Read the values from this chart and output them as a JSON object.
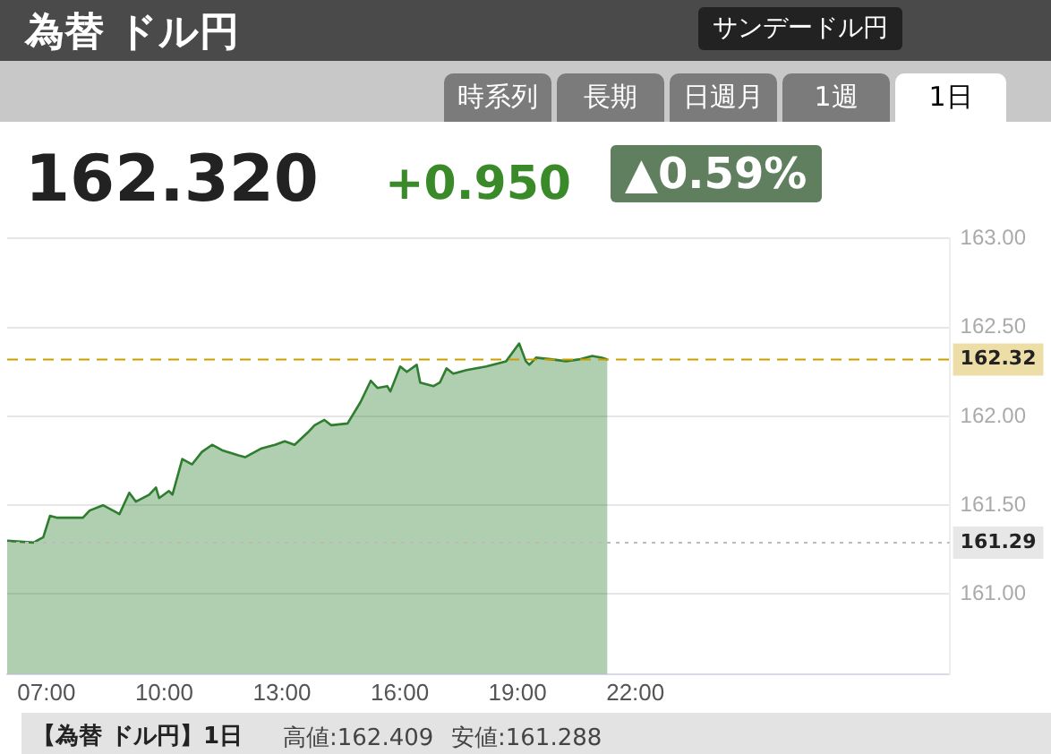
{
  "chart_data": {
    "type": "area",
    "title": "為替 ドル円",
    "annotations": [
      "サンデードル円",
      "時系列",
      "長期",
      "日週月",
      "1週",
      "1日",
      "162.320",
      "+0.950",
      "▲0.59%",
      "【為替 ドル円】1日",
      "高値:162.409",
      "安値:161.288"
    ],
    "series": [
      {
        "color": "#2f7d2f",
        "x": [
          6.0,
          6.67,
          6.92,
          7.09,
          7.26,
          7.93,
          8.1,
          8.44,
          8.78,
          8.86,
          9.11,
          9.28,
          9.62,
          9.79,
          9.87,
          10.12,
          10.21,
          10.46,
          10.71,
          10.96,
          11.22,
          11.47,
          11.89,
          12.06,
          12.48,
          12.82,
          13.07,
          13.32,
          13.66,
          13.83,
          14.08,
          14.25,
          14.67,
          15.0,
          15.26,
          15.43,
          15.68,
          15.76,
          16.01,
          16.18,
          16.43,
          16.52,
          16.86,
          17.02,
          17.19,
          17.36,
          17.7,
          18.2,
          18.71,
          19.04,
          19.21,
          19.3,
          19.47,
          19.89,
          20.23,
          20.56,
          20.9,
          21.15,
          21.29
        ],
        "values": [
          161.3,
          161.29,
          161.32,
          161.44,
          161.43,
          161.43,
          161.47,
          161.5,
          161.46,
          161.45,
          161.57,
          161.52,
          161.56,
          161.6,
          161.54,
          161.58,
          161.56,
          161.76,
          161.73,
          161.8,
          161.84,
          161.81,
          161.78,
          161.77,
          161.82,
          161.84,
          161.86,
          161.84,
          161.91,
          161.95,
          161.98,
          161.95,
          161.96,
          162.08,
          162.2,
          162.16,
          162.17,
          162.14,
          162.28,
          162.25,
          162.29,
          162.19,
          162.17,
          162.19,
          162.27,
          162.24,
          162.26,
          162.28,
          162.31,
          162.41,
          162.31,
          162.29,
          162.33,
          162.32,
          162.31,
          162.32,
          162.34,
          162.33,
          162.32
        ]
      }
    ],
    "xlim": [
      6,
      30
    ],
    "xticks": [
      {
        "value": 7,
        "label": "07:00"
      },
      {
        "value": 10,
        "label": "10:00"
      },
      {
        "value": 13,
        "label": "13:00"
      },
      {
        "value": 16,
        "label": "16:00"
      },
      {
        "value": 19,
        "label": "19:00"
      },
      {
        "value": 22,
        "label": "22:00"
      }
    ],
    "ylim": [
      160.55,
      163.0
    ],
    "yticks": [
      {
        "value": 161.0,
        "label": "161.00"
      },
      {
        "value": 161.5,
        "label": "161.50"
      },
      {
        "value": 162.0,
        "label": "162.00"
      },
      {
        "value": 162.5,
        "label": "162.50"
      },
      {
        "value": 163.0,
        "label": "163.00"
      }
    ],
    "ref_lines": [
      {
        "axis": "y",
        "value": 162.32,
        "label": "162.32",
        "color": "#c9a000",
        "line_style": "dashed"
      },
      {
        "axis": "y",
        "value": 161.29,
        "label": "161.29",
        "color": "#bbbbbb",
        "line_style": "dotted"
      }
    ],
    "grid": "y",
    "legend": false,
    "marker": "none",
    "line_style": "solid"
  }
}
